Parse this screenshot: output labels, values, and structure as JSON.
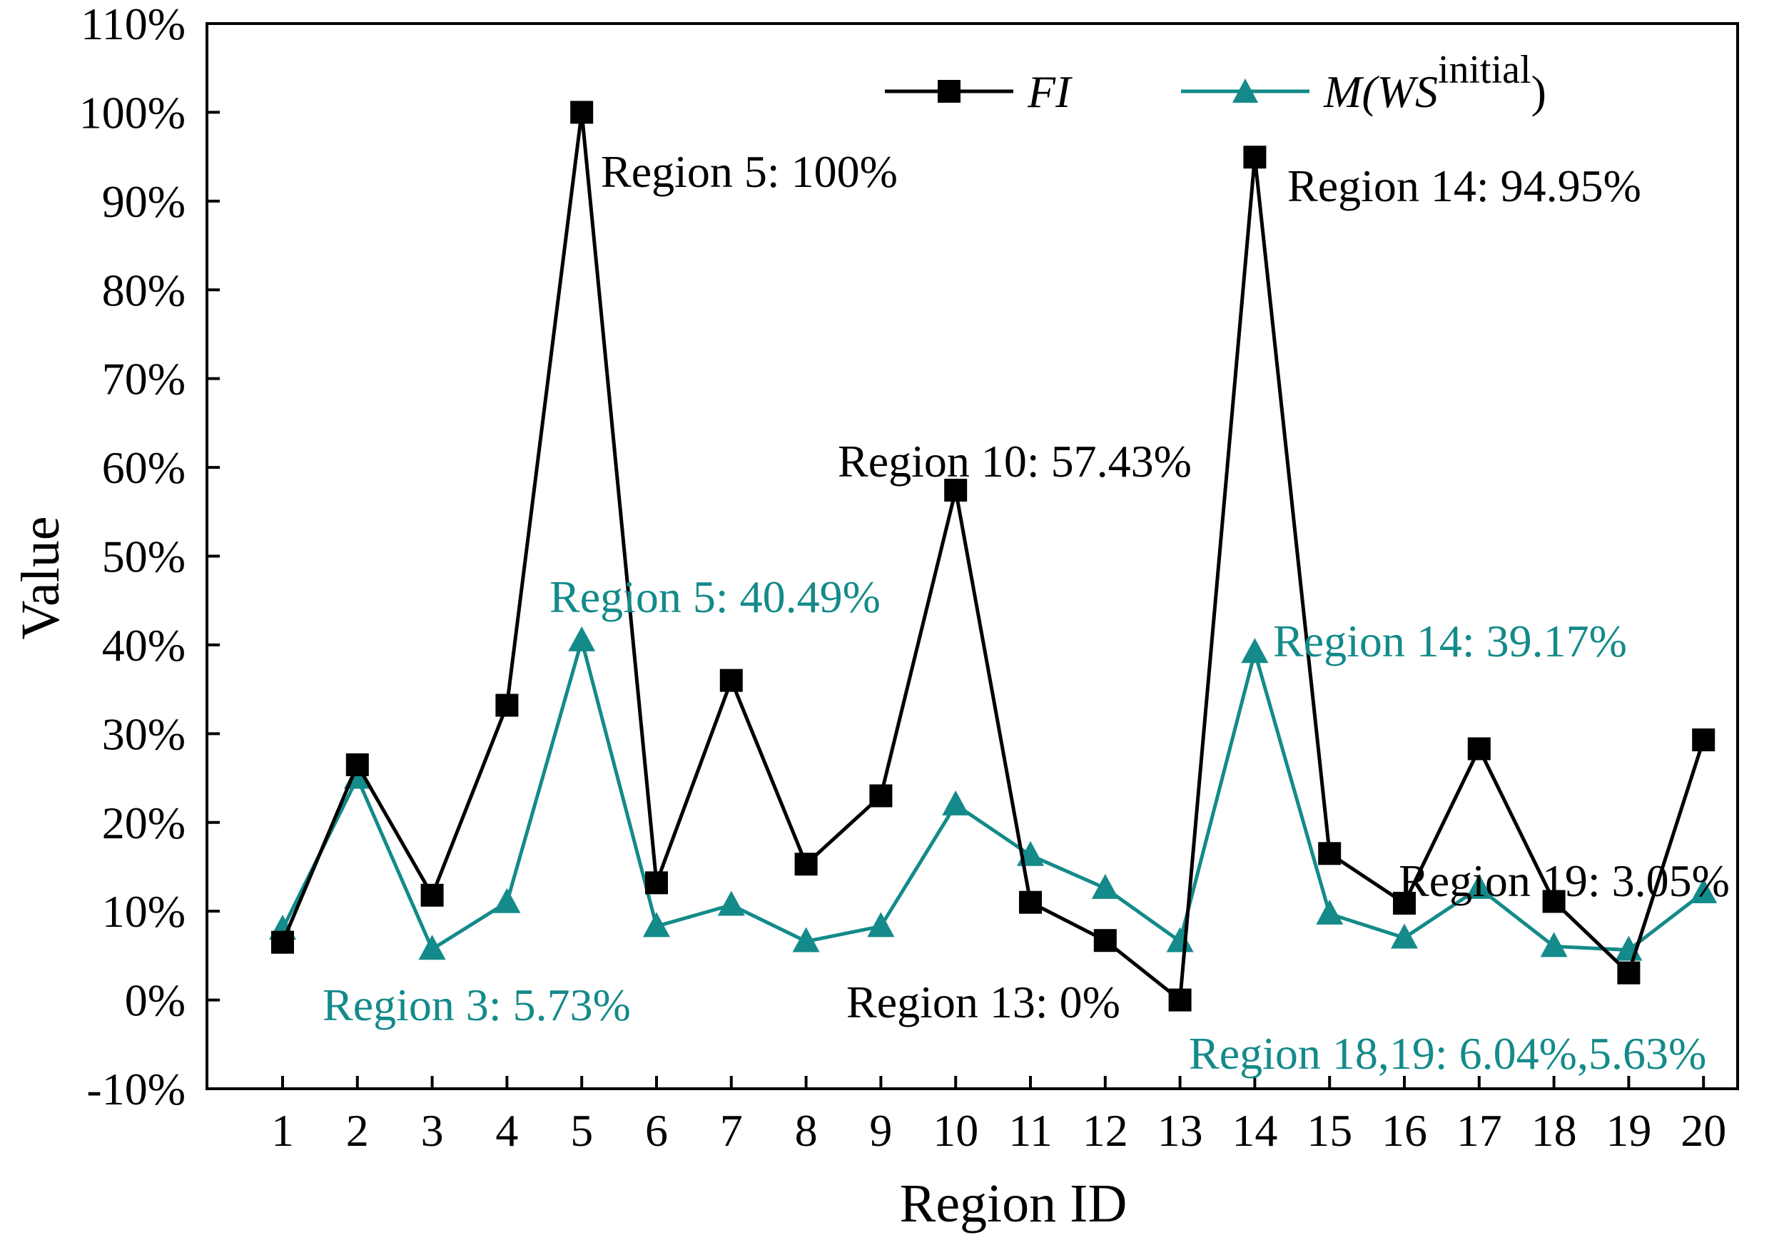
{
  "chart_data": {
    "type": "line",
    "title": "",
    "xlabel": "Region ID",
    "ylabel": "Value",
    "ylim": [
      -10,
      110
    ],
    "ytick_step": 10,
    "y_tick_labels": [
      "-10%",
      "0%",
      "10%",
      "20%",
      "30%",
      "40%",
      "50%",
      "60%",
      "70%",
      "80%",
      "90%",
      "100%",
      "110%"
    ],
    "categories": [
      "1",
      "2",
      "3",
      "4",
      "5",
      "6",
      "7",
      "8",
      "9",
      "10",
      "11",
      "12",
      "13",
      "14",
      "15",
      "16",
      "17",
      "18",
      "19",
      "20"
    ],
    "legend_position": "top",
    "series": [
      {
        "name": "FI",
        "name_parts": {
          "base": "FI"
        },
        "color": "#000000",
        "marker": "square",
        "values": [
          6.5,
          26.5,
          11.8,
          33.2,
          100,
          13.2,
          36.0,
          15.3,
          23.0,
          57.43,
          11.0,
          6.7,
          0,
          94.95,
          16.5,
          10.9,
          28.3,
          11.1,
          3.05,
          29.3
        ]
      },
      {
        "name": "M(WS^initial)",
        "name_parts": {
          "base": "M(WS",
          "sup": "initial",
          "close": ")"
        },
        "color": "#148a8a",
        "marker": "triangle",
        "values": [
          8.0,
          25.0,
          5.73,
          11.0,
          40.49,
          8.3,
          10.7,
          6.6,
          8.3,
          22.0,
          16.3,
          12.6,
          6.6,
          39.17,
          9.7,
          7.0,
          12.6,
          6.04,
          5.63,
          12.1
        ]
      }
    ],
    "annotations": [
      {
        "text": "Region 5: 100%",
        "color": "#000000"
      },
      {
        "text": "Region 14: 94.95%",
        "color": "#000000"
      },
      {
        "text": "Region 10: 57.43%",
        "color": "#000000"
      },
      {
        "text": "Region 5: 40.49%",
        "color": "#148a8a"
      },
      {
        "text": "Region 14: 39.17%",
        "color": "#148a8a"
      },
      {
        "text": "Region 19: 3.05%",
        "color": "#000000"
      },
      {
        "text": "Region 3: 5.73%",
        "color": "#148a8a"
      },
      {
        "text": "Region 13: 0%",
        "color": "#000000"
      },
      {
        "text": "Region 18,19: 6.04%,5.63%",
        "color": "#148a8a"
      }
    ]
  }
}
